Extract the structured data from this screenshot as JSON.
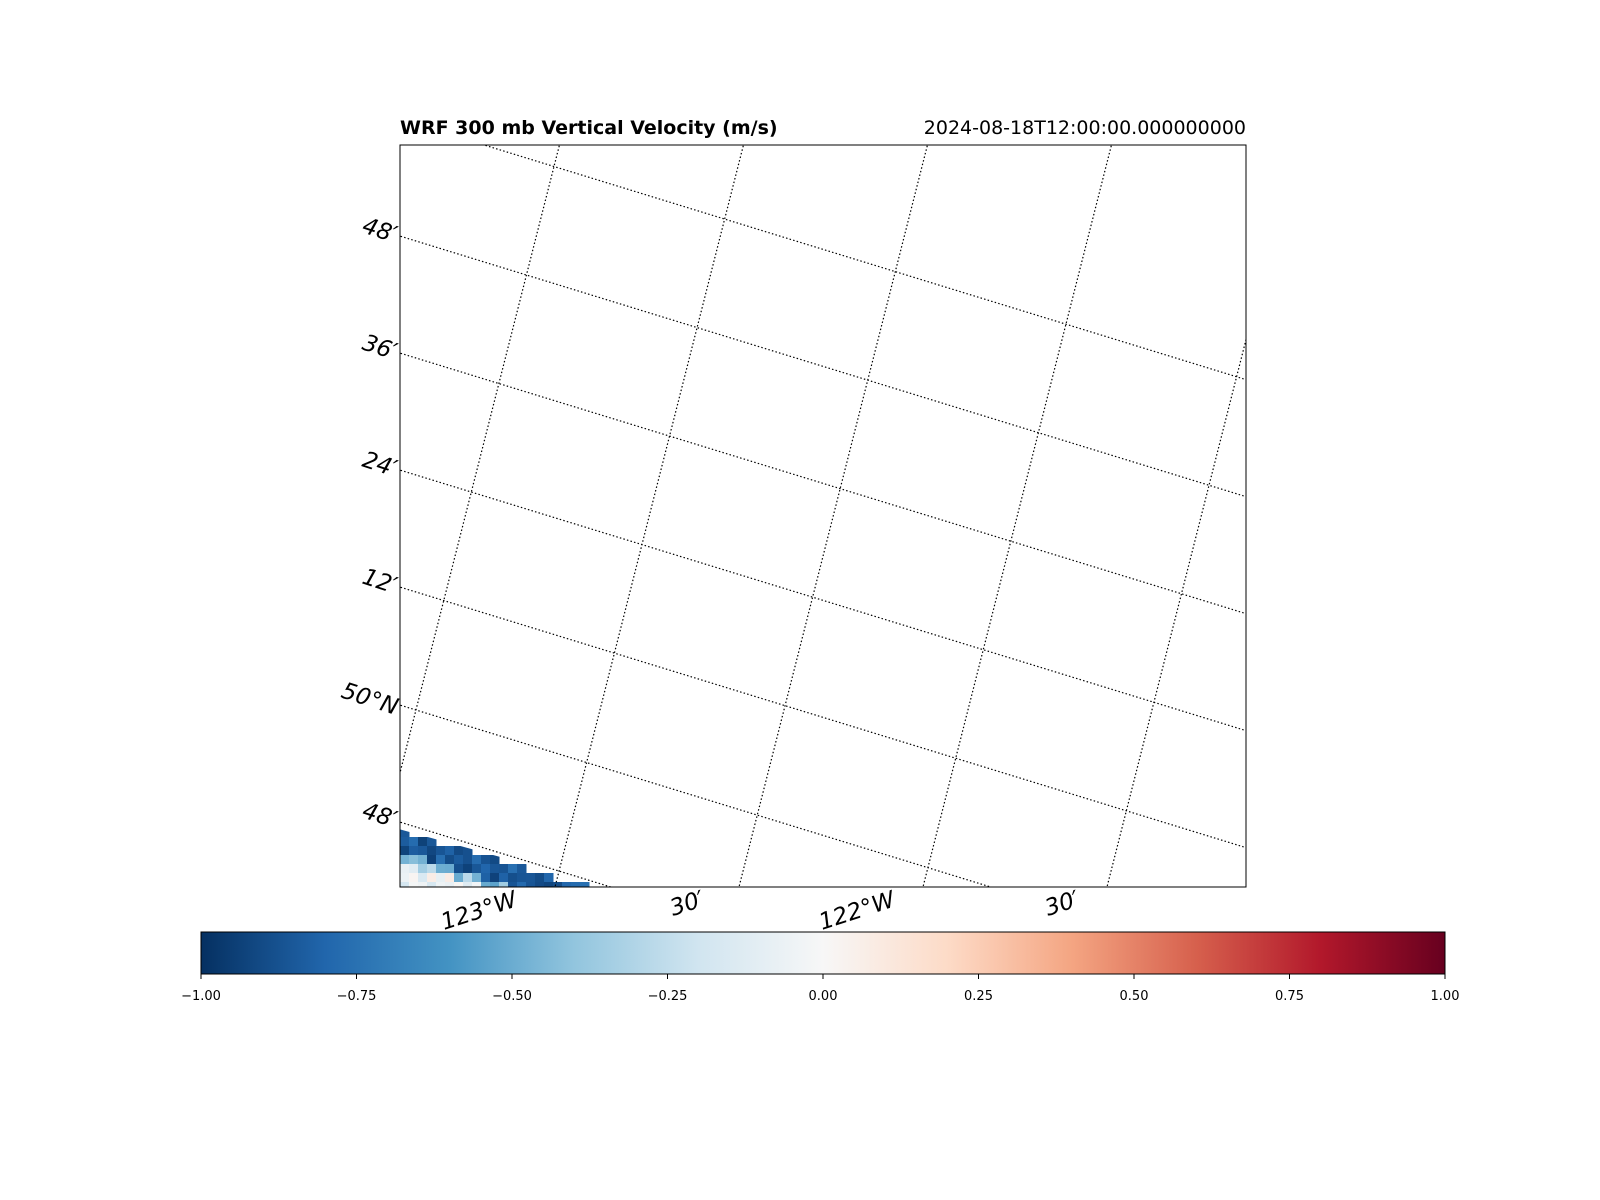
{
  "title": "WRF 300 mb Vertical Velocity (m/s)",
  "timestamp": "2024-08-18T12:00:00.000000000",
  "map": {
    "lat_labels": [
      "48′",
      "36′",
      "24′",
      "12′",
      "50°N",
      "48′"
    ],
    "lon_labels": [
      "123°W",
      "30′",
      "122°W",
      "30′"
    ],
    "gridline_style": "dotted",
    "field_visible": "bottom-left corner strip, negative (blue) values near -1.00 to -0.25"
  },
  "colorbar": {
    "colormap": "RdBu_r",
    "vmin": -1.0,
    "vmax": 1.0,
    "orientation": "horizontal",
    "tick_labels": [
      "−1.00",
      "−0.75",
      "−0.50",
      "−0.25",
      "0.00",
      "0.25",
      "0.50",
      "0.75",
      "1.00"
    ],
    "colors": [
      "#053061",
      "#2166ac",
      "#4393c3",
      "#92c5de",
      "#d1e5f0",
      "#f7f7f7",
      "#fddbc7",
      "#f4a582",
      "#d6604d",
      "#b2182b",
      "#67001f"
    ]
  }
}
